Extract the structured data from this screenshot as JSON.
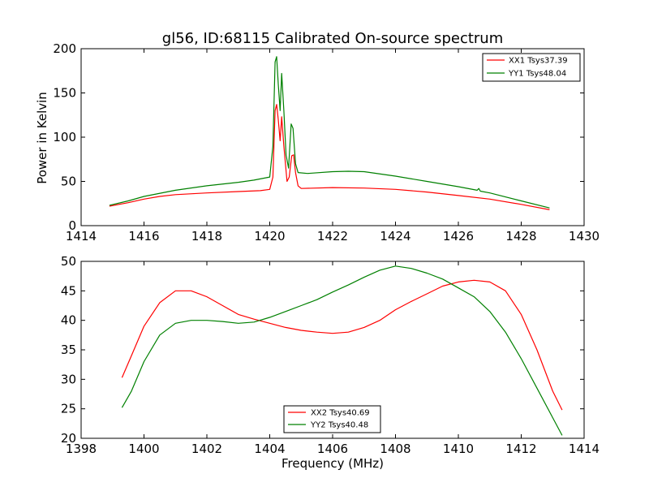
{
  "figure": {
    "title": "gl56, ID:68115 Calibrated On-source spectrum",
    "xlabel": "Frequency (MHz)"
  },
  "chart_data": [
    {
      "type": "line",
      "ylabel": "Power in Kelvin",
      "xlim": [
        1414,
        1430
      ],
      "ylim": [
        0,
        200
      ],
      "xticks": [
        "1414",
        "1416",
        "1418",
        "1420",
        "1422",
        "1424",
        "1426",
        "1428",
        "1430"
      ],
      "yticks": [
        "0",
        "50",
        "100",
        "150",
        "200"
      ],
      "legend_position": "top-right",
      "series": [
        {
          "name": "XX1 Tsys37.39",
          "color": "#ff0000",
          "points": [
            [
              1414.9,
              22
            ],
            [
              1415.5,
              26
            ],
            [
              1416,
              30
            ],
            [
              1416.5,
              33
            ],
            [
              1417,
              35
            ],
            [
              1418,
              37
            ],
            [
              1419,
              38.5
            ],
            [
              1419.7,
              39.5
            ],
            [
              1420.0,
              41
            ],
            [
              1420.1,
              55
            ],
            [
              1420.17,
              130
            ],
            [
              1420.22,
              137
            ],
            [
              1420.27,
              120
            ],
            [
              1420.33,
              96
            ],
            [
              1420.38,
              123
            ],
            [
              1420.45,
              90
            ],
            [
              1420.55,
              50
            ],
            [
              1420.62,
              55
            ],
            [
              1420.7,
              79
            ],
            [
              1420.76,
              80
            ],
            [
              1420.82,
              60
            ],
            [
              1420.9,
              45
            ],
            [
              1421,
              42
            ],
            [
              1422,
              43
            ],
            [
              1423,
              42.5
            ],
            [
              1424,
              41
            ],
            [
              1425,
              38
            ],
            [
              1426,
              34
            ],
            [
              1427,
              30
            ],
            [
              1428,
              24
            ],
            [
              1428.9,
              18
            ]
          ]
        },
        {
          "name": "YY1 Tsys48.04",
          "color": "#008000",
          "points": [
            [
              1414.9,
              23
            ],
            [
              1415.5,
              28
            ],
            [
              1416,
              33
            ],
            [
              1417,
              40
            ],
            [
              1418,
              45
            ],
            [
              1419,
              49
            ],
            [
              1419.5,
              51.5
            ],
            [
              1420.0,
              55
            ],
            [
              1420.1,
              90
            ],
            [
              1420.17,
              185
            ],
            [
              1420.22,
              191
            ],
            [
              1420.27,
              160
            ],
            [
              1420.33,
              130
            ],
            [
              1420.38,
              172
            ],
            [
              1420.45,
              130
            ],
            [
              1420.52,
              80
            ],
            [
              1420.6,
              65
            ],
            [
              1420.68,
              115
            ],
            [
              1420.74,
              110
            ],
            [
              1420.82,
              70
            ],
            [
              1420.9,
              60
            ],
            [
              1421.2,
              59
            ],
            [
              1422,
              61
            ],
            [
              1422.5,
              61.5
            ],
            [
              1423,
              61
            ],
            [
              1424,
              56
            ],
            [
              1425,
              50
            ],
            [
              1426,
              44
            ],
            [
              1426.6,
              40
            ],
            [
              1426.65,
              42
            ],
            [
              1426.7,
              39
            ],
            [
              1427,
              37
            ],
            [
              1428,
              28
            ],
            [
              1428.9,
              20
            ]
          ]
        }
      ]
    },
    {
      "type": "line",
      "ylabel": "",
      "xlim": [
        1398,
        1414
      ],
      "ylim": [
        20,
        50
      ],
      "xticks": [
        "1398",
        "1400",
        "1402",
        "1404",
        "1406",
        "1408",
        "1410",
        "1412",
        "1414"
      ],
      "yticks": [
        "20",
        "25",
        "30",
        "35",
        "40",
        "45",
        "50"
      ],
      "legend_position": "bottom-center",
      "series": [
        {
          "name": "XX2 Tsys40.69",
          "color": "#ff0000",
          "points": [
            [
              1399.3,
              30.3
            ],
            [
              1399.6,
              34
            ],
            [
              1400,
              39
            ],
            [
              1400.5,
              43
            ],
            [
              1401,
              45
            ],
            [
              1401.5,
              45
            ],
            [
              1402,
              44
            ],
            [
              1402.5,
              42.5
            ],
            [
              1403,
              41
            ],
            [
              1403.5,
              40.2
            ],
            [
              1404,
              39.5
            ],
            [
              1404.5,
              38.8
            ],
            [
              1405,
              38.3
            ],
            [
              1405.5,
              38
            ],
            [
              1406,
              37.8
            ],
            [
              1406.5,
              38
            ],
            [
              1407,
              38.8
            ],
            [
              1407.5,
              40
            ],
            [
              1408,
              41.8
            ],
            [
              1408.5,
              43.2
            ],
            [
              1409,
              44.5
            ],
            [
              1409.5,
              45.8
            ],
            [
              1410,
              46.5
            ],
            [
              1410.5,
              46.8
            ],
            [
              1411,
              46.5
            ],
            [
              1411.5,
              45
            ],
            [
              1412,
              41
            ],
            [
              1412.5,
              35
            ],
            [
              1413,
              28
            ],
            [
              1413.3,
              24.8
            ]
          ]
        },
        {
          "name": "YY2 Tsys40.48",
          "color": "#008000",
          "points": [
            [
              1399.3,
              25.2
            ],
            [
              1399.6,
              28
            ],
            [
              1400,
              33
            ],
            [
              1400.5,
              37.5
            ],
            [
              1401,
              39.5
            ],
            [
              1401.5,
              40
            ],
            [
              1402,
              40
            ],
            [
              1402.5,
              39.8
            ],
            [
              1403,
              39.5
            ],
            [
              1403.5,
              39.7
            ],
            [
              1404,
              40.5
            ],
            [
              1404.5,
              41.5
            ],
            [
              1405,
              42.5
            ],
            [
              1405.5,
              43.5
            ],
            [
              1406,
              44.8
            ],
            [
              1406.5,
              46
            ],
            [
              1407,
              47.3
            ],
            [
              1407.5,
              48.5
            ],
            [
              1408,
              49.2
            ],
            [
              1408.5,
              48.8
            ],
            [
              1409,
              48
            ],
            [
              1409.5,
              47
            ],
            [
              1410,
              45.5
            ],
            [
              1410.5,
              44
            ],
            [
              1411,
              41.5
            ],
            [
              1411.5,
              38
            ],
            [
              1412,
              33.5
            ],
            [
              1412.5,
              28.5
            ],
            [
              1413,
              23.5
            ],
            [
              1413.3,
              20.5
            ]
          ]
        }
      ]
    }
  ]
}
